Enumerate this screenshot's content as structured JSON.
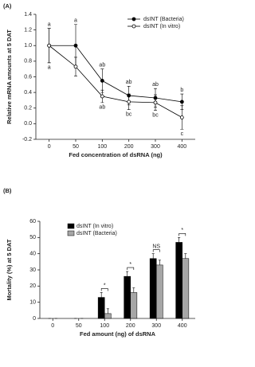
{
  "chart_data": [
    {
      "type": "line",
      "panel": "(A)",
      "ylabel": "Relative mRNA amounts at 5 DAT",
      "xlabel": "Fed concentration of dsRNA (ng)",
      "categories": [
        "0",
        "50",
        "100",
        "200",
        "300",
        "400"
      ],
      "ylim": [
        -0.2,
        1.4
      ],
      "yticks": [
        {
          "value": -0.2,
          "label": "-0.2"
        },
        {
          "value": 0,
          "label": "0.0"
        },
        {
          "value": 0.2,
          "label": "0.2"
        },
        {
          "value": 0.4,
          "label": "0.4"
        },
        {
          "value": 0.6,
          "label": "0.6"
        },
        {
          "value": 0.8,
          "label": "0.8"
        },
        {
          "value": 1,
          "label": "1.0"
        },
        {
          "value": 1.2,
          "label": "1.2"
        },
        {
          "value": 1.4,
          "label": "1.4"
        }
      ],
      "legend": "upper right",
      "series": [
        {
          "name": "dsINT (Bacteria)",
          "color": "#000000",
          "values": [
            1.0,
            1.0,
            0.55,
            0.36,
            0.33,
            0.28
          ],
          "errors": [
            0.22,
            0.27,
            0.15,
            0.12,
            0.12,
            0.1
          ],
          "letters": [
            "a",
            "a",
            "ab",
            "ab",
            "ab",
            "b"
          ]
        },
        {
          "name": "dsINT (In vitro)",
          "color": "#ffffff",
          "values": [
            1.0,
            0.73,
            0.35,
            0.28,
            0.27,
            0.08
          ],
          "errors": [
            0.22,
            0.12,
            0.08,
            0.1,
            0.1,
            0.15
          ],
          "letters": [
            "a",
            null,
            "ab",
            "bc",
            "bc",
            "c"
          ]
        }
      ]
    },
    {
      "type": "bar",
      "panel": "(B)",
      "ylabel": "Mortality (%) at 5 DAT",
      "xlabel": "Fed amount (ng) of dsRNA",
      "categories": [
        "0",
        "50",
        "100",
        "200",
        "300",
        "400"
      ],
      "ylim": [
        0,
        60
      ],
      "yticks": [
        0,
        10,
        20,
        30,
        40,
        50,
        60
      ],
      "legend": "upper left",
      "annotations": [
        null,
        null,
        "*",
        "*",
        "NS",
        "*"
      ],
      "series": [
        {
          "name": "dsINT (In vitro)",
          "color": "#000000",
          "values": [
            0,
            0,
            13,
            26,
            37,
            47
          ],
          "errors": [
            0,
            0,
            3,
            3,
            3,
            3
          ]
        },
        {
          "name": "dsINT (Bacteria)",
          "color": "#a6a6a6",
          "values": [
            0,
            0,
            3,
            16,
            33,
            37
          ],
          "errors": [
            0,
            0,
            3,
            3,
            3,
            3
          ]
        }
      ]
    }
  ]
}
